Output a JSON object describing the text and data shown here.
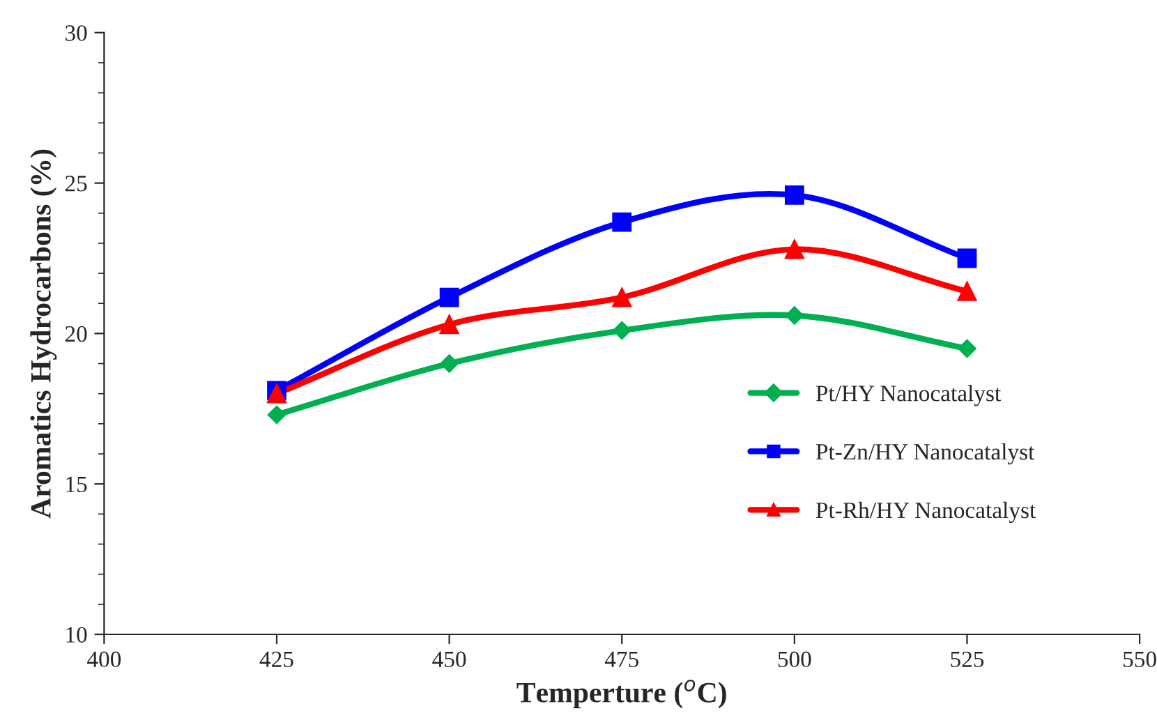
{
  "chart_data": {
    "type": "line",
    "xlabel": "Temperture ($^{o}$C)",
    "ylabel": "Aromatics Hydrocarbons (%)",
    "x": [
      425,
      450,
      475,
      500,
      525
    ],
    "series": [
      {
        "name": "Pt/HY Nanocatalyst",
        "color": "#00b050",
        "marker": "diamond",
        "values": [
          17.3,
          19.0,
          20.1,
          20.6,
          19.5
        ]
      },
      {
        "name": "Pt-Zn/HY Nanocatalyst",
        "color": "#0000ff",
        "marker": "square",
        "values": [
          18.1,
          21.2,
          23.7,
          24.6,
          22.5
        ]
      },
      {
        "name": "Pt-Rh/HY Nanocatalyst",
        "color": "#ff0000",
        "marker": "triangle",
        "values": [
          18.0,
          20.3,
          21.2,
          22.8,
          21.4
        ]
      }
    ],
    "xlim": [
      400,
      550
    ],
    "xticks": [
      400,
      425,
      450,
      475,
      500,
      525,
      550
    ],
    "ylim": [
      10,
      30
    ],
    "yticks": [
      10,
      15,
      20,
      25,
      30
    ],
    "grid": false,
    "legend": "right",
    "line_style": "solid"
  }
}
